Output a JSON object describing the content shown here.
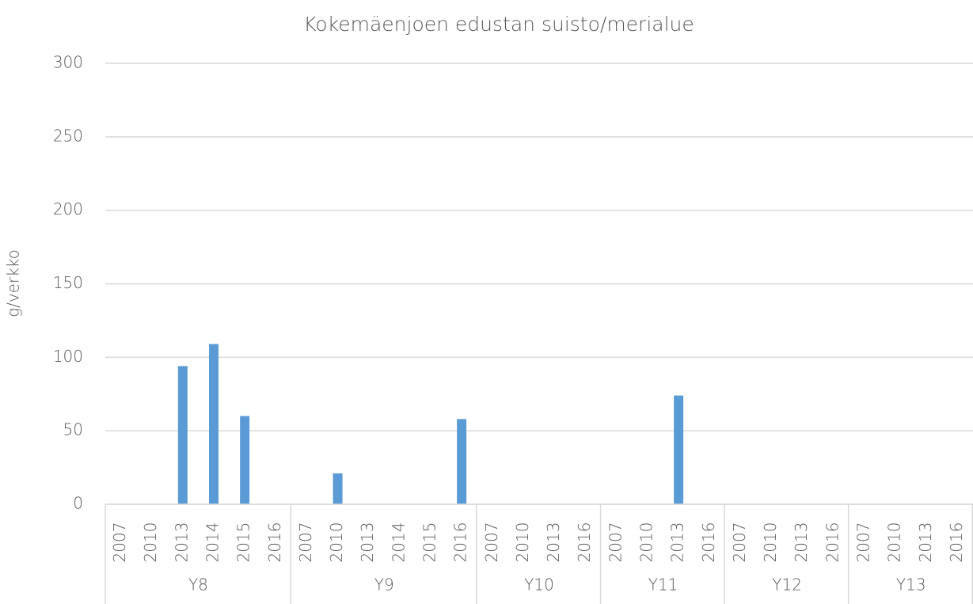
{
  "chart_data": {
    "type": "bar",
    "title": "Kokemäenjoen  edustan suisto/merialue",
    "y_label": "g/verkko",
    "color": "#5b9bd5",
    "ylim": [
      0,
      300
    ],
    "yticks": [
      0,
      50,
      100,
      150,
      200,
      250,
      300
    ],
    "grid": true,
    "groups": [
      {
        "name": "Y8",
        "categories": [
          "2007",
          "2010",
          "2013",
          "2014",
          "2015",
          "2016"
        ],
        "values": [
          0,
          0,
          94,
          109,
          60,
          0
        ]
      },
      {
        "name": "Y9",
        "categories": [
          "2007",
          "2010",
          "2013",
          "2014",
          "2015",
          "2016"
        ],
        "values": [
          0,
          21,
          0,
          0,
          0,
          58
        ]
      },
      {
        "name": "Y10",
        "categories": [
          "2007",
          "2010",
          "2013",
          "2016"
        ],
        "values": [
          0,
          0,
          0,
          0
        ]
      },
      {
        "name": "Y11",
        "categories": [
          "2007",
          "2010",
          "2013",
          "2016"
        ],
        "values": [
          0,
          0,
          74,
          0
        ]
      },
      {
        "name": "Y12",
        "categories": [
          "2007",
          "2010",
          "2013",
          "2016"
        ],
        "values": [
          0,
          0,
          0,
          0
        ]
      },
      {
        "name": "Y13",
        "categories": [
          "2007",
          "2010",
          "2013",
          "2016"
        ],
        "values": [
          0,
          0,
          0,
          0
        ]
      }
    ]
  }
}
